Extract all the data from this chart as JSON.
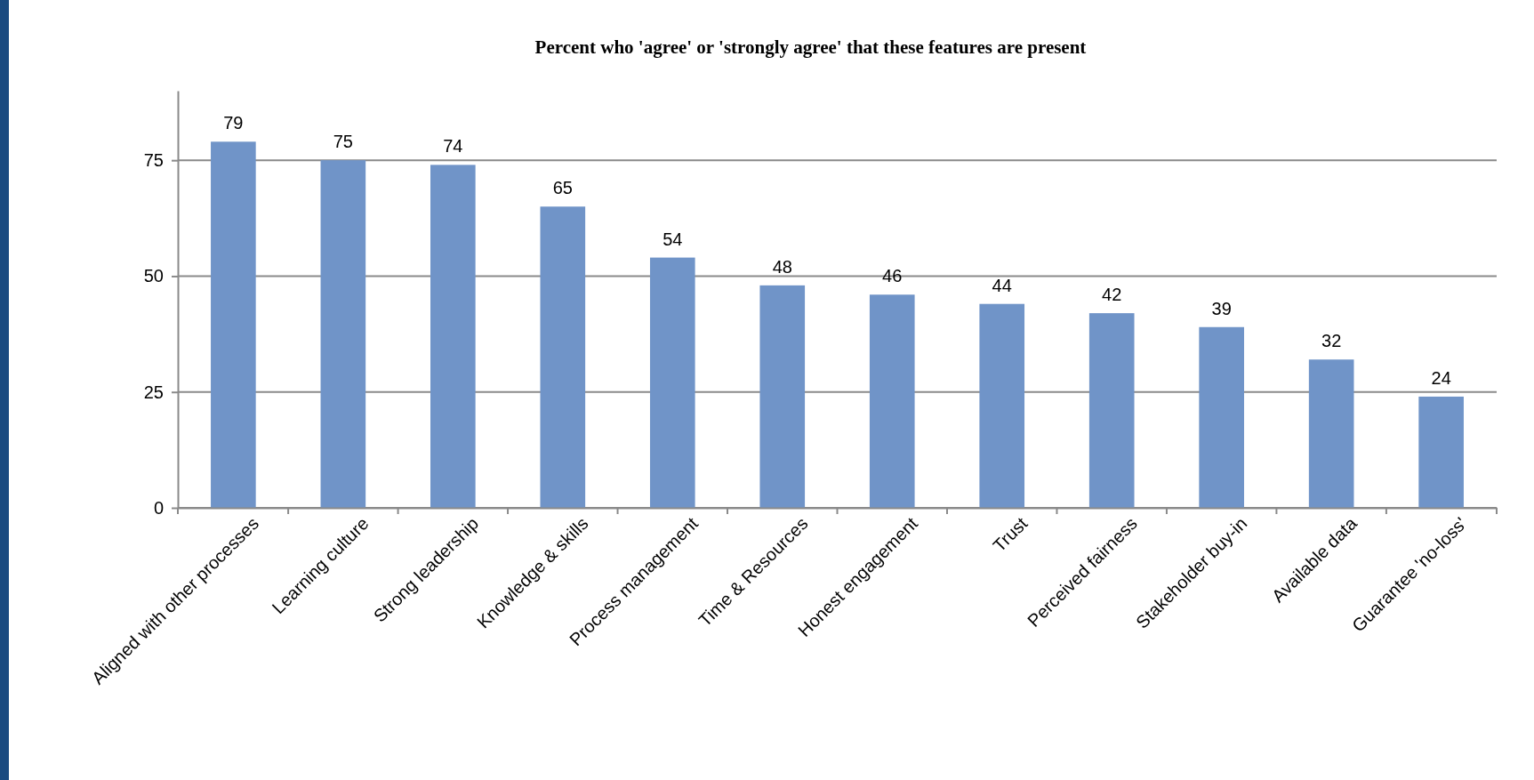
{
  "chart_data": {
    "type": "bar",
    "title": "Percent who 'agree' or 'strongly agree' that these features are present",
    "categories": [
      "Aligned with other processes",
      "Learning culture",
      "Strong leadership",
      "Knowledge & skills",
      "Process management",
      "Time & Resources",
      "Honest engagement",
      "Trust",
      "Perceived fairness",
      "Stakeholder buy-in",
      "Available data",
      "Guarantee 'no-loss'"
    ],
    "values": [
      79,
      75,
      74,
      65,
      54,
      48,
      46,
      44,
      42,
      39,
      32,
      24
    ],
    "color": "#7094c8",
    "ylim": [
      0,
      90
    ],
    "yticks": [
      0,
      25,
      50,
      75
    ],
    "grid": "y",
    "data_labels": true
  }
}
